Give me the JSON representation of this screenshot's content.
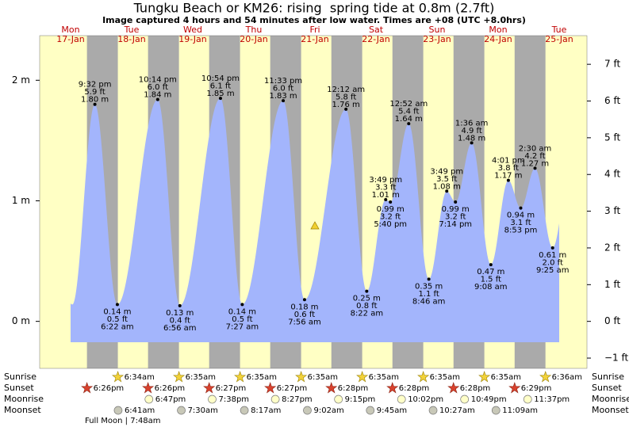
{
  "chart_data": {
    "type": "tide",
    "title": "Tungku Beach or KM26: rising  spring tide at 0.8m (2.7ft)",
    "subtitle": "Image captured 4 hours and 54 minutes after low water. Times are +08 (UTC +8.0hrs)",
    "days": {
      "weekdays": [
        "Mon",
        "Tue",
        "Wed",
        "Thu",
        "Fri",
        "Sat",
        "Sun",
        "Mon",
        "Tue"
      ],
      "dates": [
        "17-Jan",
        "18-Jan",
        "19-Jan",
        "20-Jan",
        "21-Jan",
        "22-Jan",
        "23-Jan",
        "24-Jan",
        "25-Jan"
      ]
    },
    "ylim": [
      -0.39,
      2.37
    ],
    "yticks": [
      {
        "value": 0,
        "label": "0 m"
      },
      {
        "value": 1,
        "label": "1 m"
      },
      {
        "value": 2,
        "label": "2 m"
      }
    ],
    "y2lim": [
      -1.28,
      7.78
    ],
    "y2ticks": [
      {
        "value": -1,
        "label": "−1 ft"
      },
      {
        "value": 0,
        "label": "0 ft"
      },
      {
        "value": 1,
        "label": "1 ft"
      },
      {
        "value": 2,
        "label": "2 ft"
      },
      {
        "value": 3,
        "label": "3 ft"
      },
      {
        "value": 4,
        "label": "4 ft"
      },
      {
        "value": 5,
        "label": "5 ft"
      },
      {
        "value": 6,
        "label": "6 ft"
      },
      {
        "value": 7,
        "label": "7 ft"
      }
    ],
    "color": "#a3b5fc",
    "tide": {
      "times": [
        "9:32 pm",
        "6:22 am",
        "10:14 pm",
        "6:56 am",
        "10:54 pm",
        "7:27 am",
        "11:33 pm",
        "7:56 am",
        "12:12 am",
        "8:22 am",
        "3:49 pm",
        "5:40 pm",
        "12:52 am",
        "8:46 am",
        "3:49 pm",
        "7:14 pm",
        "1:36 am",
        "9:08 am",
        "4:01 pm",
        "8:53 pm",
        "2:30 am",
        "9:25 am"
      ],
      "values": [
        1.8,
        0.14,
        1.84,
        0.13,
        1.85,
        0.14,
        1.83,
        0.18,
        1.76,
        0.25,
        1.01,
        0.99,
        1.64,
        0.35,
        1.08,
        0.99,
        1.48,
        0.47,
        1.17,
        0.94,
        1.27,
        0.61
      ],
      "value_labels": [
        "1.80 m",
        "0.14 m",
        "1.84 m",
        "0.13 m",
        "1.85 m",
        "0.14 m",
        "1.83 m",
        "0.18 m",
        "1.76 m",
        "0.25 m",
        "1.01 m",
        "0.99 m",
        "1.64 m",
        "0.35 m",
        "1.08 m",
        "0.99 m",
        "1.48 m",
        "0.47 m",
        "1.17 m",
        "0.94 m",
        "1.27 m",
        "0.61 m"
      ],
      "ft": [
        5.9,
        0.5,
        6.0,
        0.4,
        6.1,
        0.5,
        6.0,
        0.6,
        5.8,
        0.8,
        3.3,
        3.2,
        5.4,
        1.1,
        3.5,
        3.2,
        4.9,
        1.5,
        3.8,
        3.1,
        4.2,
        2.0
      ],
      "ft_labels": [
        "5.9 ft",
        "0.5 ft",
        "6.0 ft",
        "0.4 ft",
        "6.1 ft",
        "0.5 ft",
        "6.0 ft",
        "0.6 ft",
        "5.8 ft",
        "0.8 ft",
        "3.3 ft",
        "3.2 ft",
        "5.4 ft",
        "1.1 ft",
        "3.5 ft",
        "3.2 ft",
        "4.9 ft",
        "1.5 ft",
        "3.8 ft",
        "3.1 ft",
        "4.2 ft",
        "2.0 ft"
      ]
    },
    "astro": {
      "rows": [
        "Sunrise",
        "Sunset",
        "Moonrise",
        "Moonset"
      ],
      "sunrise": [
        "6:34am",
        "6:35am",
        "6:35am",
        "6:35am",
        "6:35am",
        "6:35am",
        "6:35am",
        "6:36am"
      ],
      "sunset": [
        "6:26pm",
        "6:26pm",
        "6:27pm",
        "6:27pm",
        "6:28pm",
        "6:28pm",
        "6:28pm",
        "6:29pm"
      ],
      "moonrise": [
        "6:47pm",
        "7:38pm",
        "8:27pm",
        "9:15pm",
        "10:02pm",
        "10:49pm",
        "11:37pm"
      ],
      "moonset": [
        "6:41am",
        "7:30am",
        "8:17am",
        "9:02am",
        "9:45am",
        "10:27am",
        "11:09am"
      ]
    },
    "moon_phase": "Full Moon | 7:48am"
  }
}
